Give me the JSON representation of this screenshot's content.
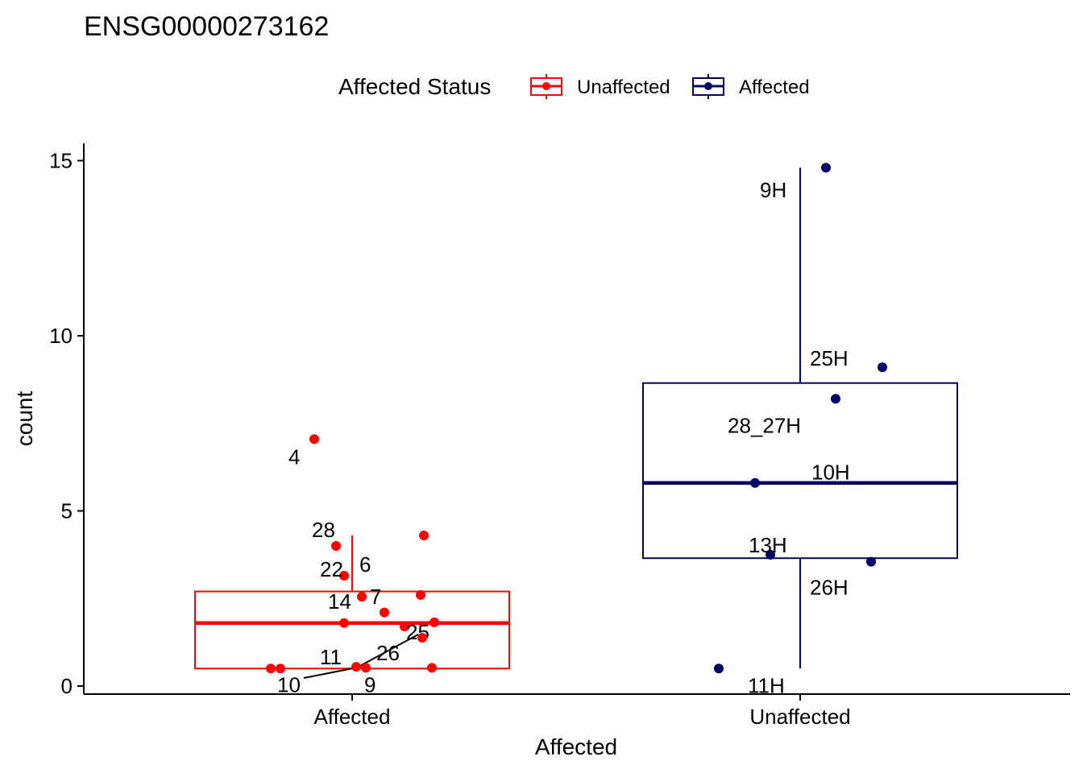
{
  "chart_data": {
    "type": "boxplot",
    "title": "ENSG00000273162",
    "xlabel": "Affected",
    "ylabel": "count",
    "ylim": [
      0,
      15
    ],
    "yticks": [
      0,
      5,
      10,
      15
    ],
    "categories": [
      "Affected",
      "Unaffected"
    ],
    "grid": false,
    "legend": {
      "title": "Affected Status",
      "position": "top",
      "entries": [
        {
          "name": "Unaffected",
          "color": "#ff0000"
        },
        {
          "name": "Affected",
          "color": "#000066"
        }
      ]
    },
    "series": [
      {
        "name": "Unaffected",
        "category": "Affected",
        "color": "#ff0000",
        "box": {
          "whisker_low": 0.5,
          "q1": 0.5,
          "median": 1.8,
          "q3": 2.7,
          "whisker_high": 4.3
        },
        "points": [
          {
            "label": "4",
            "y": 7.05
          },
          {
            "label": "28",
            "y": 4.0
          },
          {
            "label": "6",
            "y": 4.3
          },
          {
            "label": "22",
            "y": 3.15
          },
          {
            "label": "7",
            "y": 2.55
          },
          {
            "label": "14",
            "y": 2.6
          },
          {
            "label": "",
            "y": 2.1
          },
          {
            "label": "",
            "y": 1.8
          },
          {
            "label": "25",
            "y": 1.7
          },
          {
            "label": "",
            "y": 1.82
          },
          {
            "label": "26",
            "y": 1.38
          },
          {
            "label": "11",
            "y": 0.55
          },
          {
            "label": "10",
            "y": 0.5
          },
          {
            "label": "9",
            "y": 0.52
          },
          {
            "label": "",
            "y": 0.5
          },
          {
            "label": "",
            "y": 0.52
          }
        ]
      },
      {
        "name": "Affected",
        "category": "Unaffected",
        "color": "#000066",
        "box": {
          "whisker_low": 0.5,
          "q1": 3.65,
          "median": 5.8,
          "q3": 8.65,
          "whisker_high": 14.8
        },
        "points": [
          {
            "label": "9H",
            "y": 14.8
          },
          {
            "label": "25H",
            "y": 9.1
          },
          {
            "label": "28_27H",
            "y": 8.2
          },
          {
            "label": "10H",
            "y": 5.8
          },
          {
            "label": "13H",
            "y": 3.75
          },
          {
            "label": "26H",
            "y": 3.55
          },
          {
            "label": "11H",
            "y": 0.5
          }
        ]
      }
    ]
  }
}
